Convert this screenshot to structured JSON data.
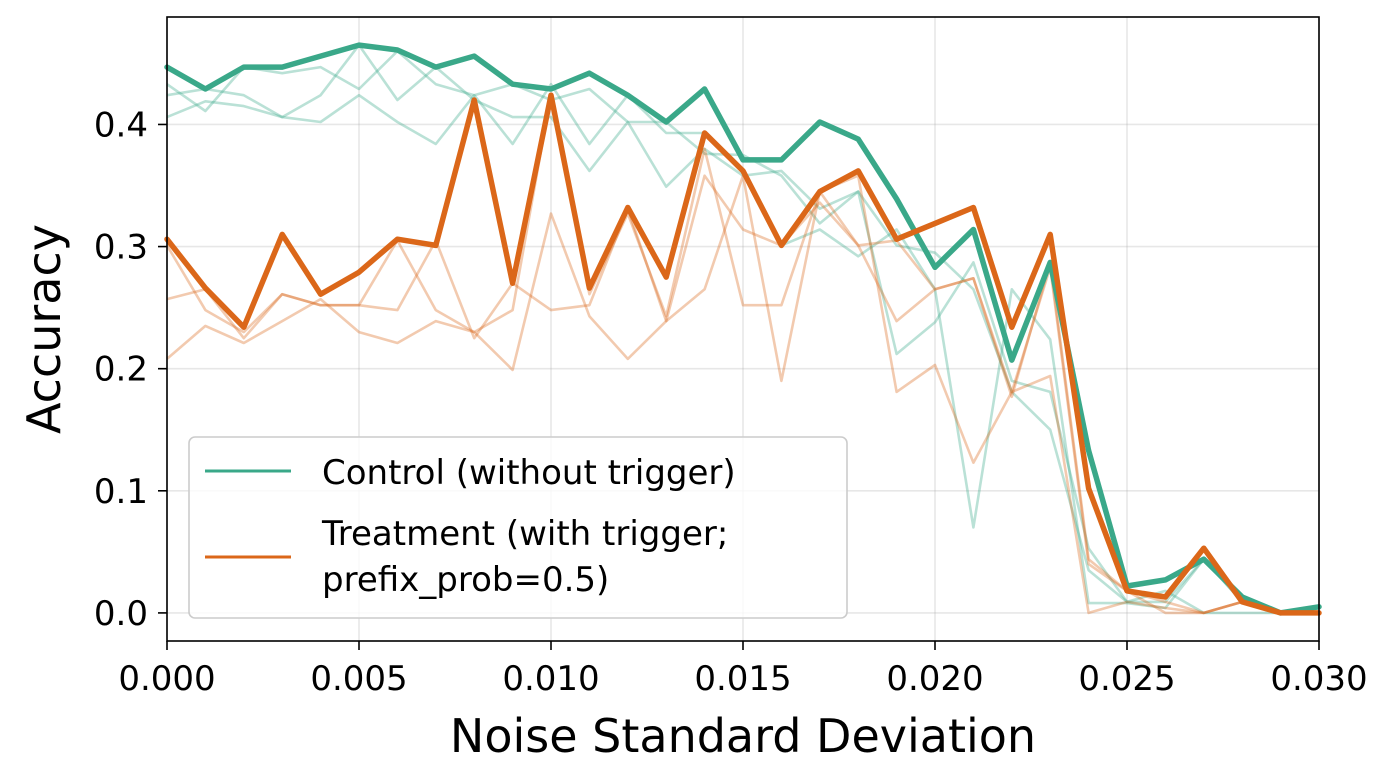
{
  "chart_data": {
    "type": "line",
    "xlabel": "Noise Standard Deviation",
    "ylabel": "Accuracy",
    "xlim": [
      0.0,
      0.03
    ],
    "ylim": [
      -0.023,
      0.488
    ],
    "xticks": [
      0.0,
      0.005,
      0.01,
      0.015,
      0.02,
      0.025,
      0.03
    ],
    "xtick_labels": [
      "0.000",
      "0.005",
      "0.010",
      "0.015",
      "0.020",
      "0.025",
      "0.030"
    ],
    "yticks": [
      0.0,
      0.1,
      0.2,
      0.3,
      0.4
    ],
    "ytick_labels": [
      "0.0",
      "0.1",
      "0.2",
      "0.3",
      "0.4"
    ],
    "grid": true,
    "legend_position": "lower-left",
    "x": [
      0.0,
      0.001,
      0.002,
      0.003,
      0.004,
      0.005,
      0.006,
      0.007,
      0.008,
      0.009,
      0.01,
      0.011,
      0.012,
      0.013,
      0.014,
      0.015,
      0.016,
      0.017,
      0.018,
      0.019,
      0.02,
      0.021,
      0.022,
      0.023,
      0.024,
      0.025,
      0.026,
      0.027,
      0.028,
      0.029,
      0.03
    ],
    "series": [
      {
        "name": "Control (without trigger)",
        "color": "#3aa889",
        "values": [
          0.447,
          0.429,
          0.447,
          0.447,
          0.456,
          0.465,
          0.461,
          0.447,
          0.456,
          0.433,
          0.429,
          0.442,
          0.424,
          0.402,
          0.429,
          0.371,
          0.371,
          0.402,
          0.388,
          0.339,
          0.283,
          0.314,
          0.207,
          0.287,
          0.133,
          0.022,
          0.027,
          0.044,
          0.013,
          0.0,
          0.005
        ]
      },
      {
        "name": "Treatment (with trigger; prefix_prob=0.5)",
        "color": "#db6719",
        "values": [
          0.306,
          0.266,
          0.234,
          0.31,
          0.261,
          0.279,
          0.306,
          0.301,
          0.42,
          0.27,
          0.424,
          0.266,
          0.332,
          0.275,
          0.393,
          0.362,
          0.301,
          0.345,
          0.362,
          0.306,
          0.319,
          0.332,
          0.234,
          0.31,
          0.102,
          0.018,
          0.013,
          0.053,
          0.009,
          0.0,
          0.0
        ]
      }
    ],
    "faint_runs": [
      {
        "series": "Control (without trigger)",
        "values": [
          0.424,
          0.429,
          0.424,
          0.406,
          0.424,
          0.465,
          0.42,
          0.447,
          0.42,
          0.406,
          0.406,
          0.362,
          0.402,
          0.349,
          0.38,
          0.358,
          0.362,
          0.331,
          0.345,
          0.212,
          0.238,
          0.287,
          0.19,
          0.181,
          0.053,
          0.009,
          0.009,
          0.044,
          0.009,
          0.0,
          0.0
        ]
      },
      {
        "series": "Control (without trigger)",
        "values": [
          0.433,
          0.411,
          0.447,
          0.442,
          0.447,
          0.429,
          0.46,
          0.433,
          0.424,
          0.384,
          0.433,
          0.384,
          0.424,
          0.393,
          0.393,
          0.362,
          0.301,
          0.314,
          0.292,
          0.314,
          0.265,
          0.07,
          0.265,
          0.224,
          0.008,
          0.008,
          0.004,
          0.044,
          0.009,
          0.0,
          0.0
        ]
      },
      {
        "series": "Control (without trigger)",
        "values": [
          0.406,
          0.419,
          0.415,
          0.406,
          0.402,
          0.424,
          0.402,
          0.384,
          0.424,
          0.433,
          0.42,
          0.429,
          0.402,
          0.402,
          0.376,
          0.375,
          0.358,
          0.319,
          0.345,
          0.301,
          0.295,
          0.265,
          0.181,
          0.15,
          0.035,
          0.009,
          0.018,
          0.0,
          0.0,
          0.0,
          0.0
        ]
      },
      {
        "series": "Treatment (with trigger; prefix_prob=0.5)",
        "values": [
          0.257,
          0.265,
          0.225,
          0.261,
          0.252,
          0.252,
          0.248,
          0.305,
          0.225,
          0.27,
          0.248,
          0.252,
          0.331,
          0.239,
          0.265,
          0.358,
          0.19,
          0.345,
          0.301,
          0.239,
          0.265,
          0.274,
          0.181,
          0.194,
          0.0,
          0.009,
          0.004,
          0.0,
          0.009,
          0.0,
          0.0
        ]
      },
      {
        "series": "Treatment (with trigger; prefix_prob=0.5)",
        "values": [
          0.208,
          0.235,
          0.221,
          0.239,
          0.257,
          0.23,
          0.221,
          0.239,
          0.23,
          0.199,
          0.327,
          0.243,
          0.208,
          0.239,
          0.358,
          0.314,
          0.301,
          0.336,
          0.301,
          0.305,
          0.265,
          0.274,
          0.177,
          0.287,
          0.044,
          0.018,
          0.0,
          0.0,
          0.009,
          0.0,
          0.0
        ]
      },
      {
        "series": "Treatment (with trigger; prefix_prob=0.5)",
        "values": [
          0.301,
          0.248,
          0.23,
          0.261,
          0.252,
          0.252,
          0.305,
          0.248,
          0.23,
          0.248,
          0.424,
          0.261,
          0.327,
          0.243,
          0.38,
          0.252,
          0.252,
          0.345,
          0.358,
          0.181,
          0.203,
          0.123,
          0.181,
          0.283,
          0.04,
          0.018,
          0.009,
          0.0,
          0.009,
          0.0,
          0.0
        ]
      }
    ]
  }
}
